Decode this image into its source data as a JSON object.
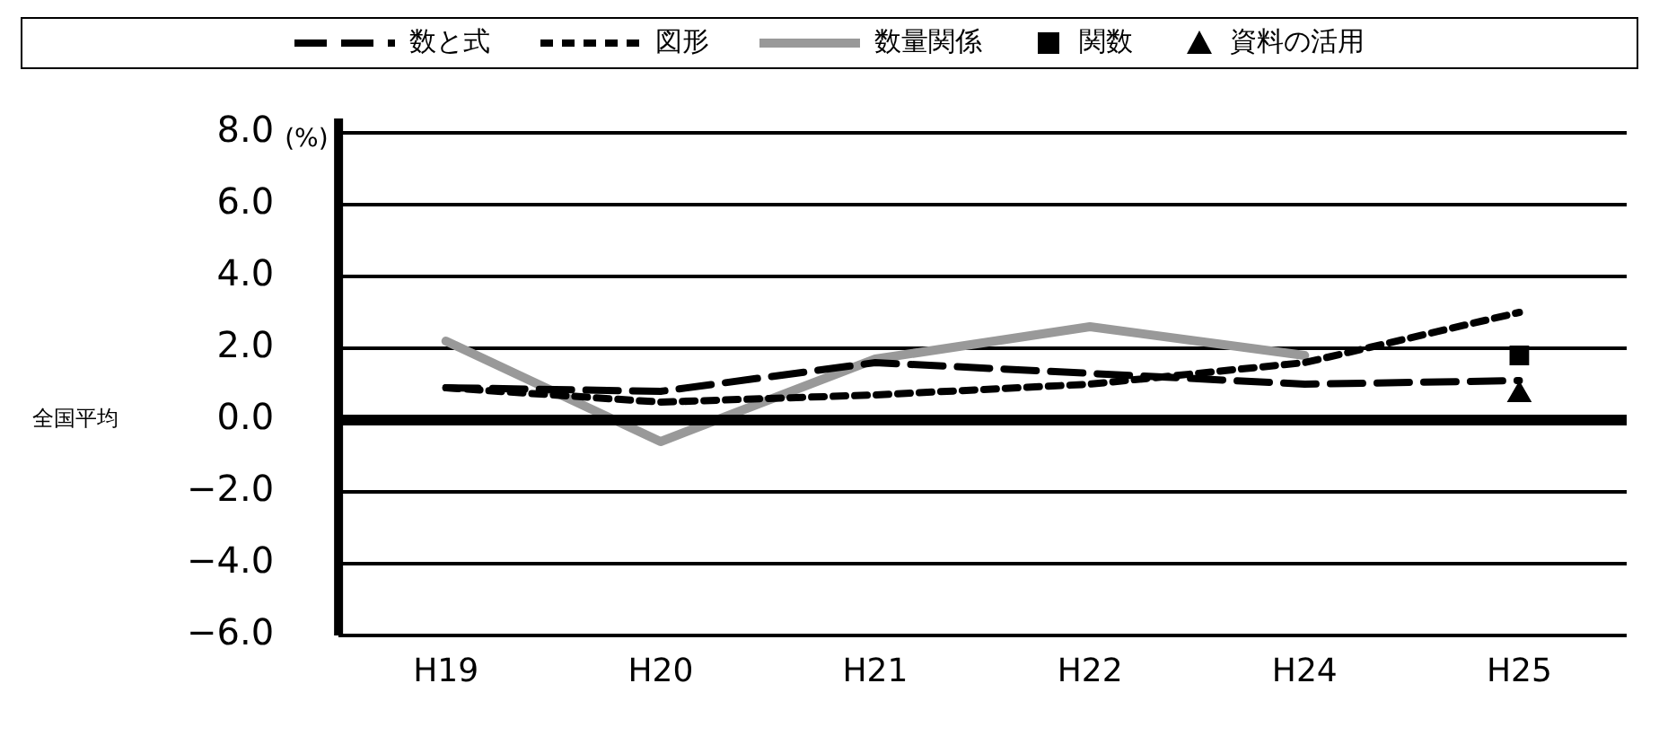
{
  "chart_data": {
    "type": "line",
    "categories": [
      "H19",
      "H20",
      "H21",
      "H22",
      "H24",
      "H25"
    ],
    "ylabel": "全国平均",
    "annotations": [
      "(%)"
    ],
    "ylim": [
      -6,
      8
    ],
    "yticks": [
      {
        "value": -6,
        "label": "−6.0"
      },
      {
        "value": -4,
        "label": "−4.0"
      },
      {
        "value": -2,
        "label": "−2.0"
      },
      {
        "value": 0,
        "label": "0.0"
      },
      {
        "value": 2,
        "label": "2.0"
      },
      {
        "value": 4,
        "label": "4.0"
      },
      {
        "value": 6,
        "label": "6.0"
      },
      {
        "value": 8,
        "label": "8.0"
      }
    ],
    "grid": "y",
    "legend": "top",
    "marker": "none",
    "ref_lines": [
      {
        "axis": "y",
        "value": 0,
        "color": "#000000"
      }
    ],
    "series": [
      {
        "name": "数と式",
        "type": "line",
        "color": "#000000",
        "line_style": "dashed",
        "values": [
          0.9,
          0.8,
          1.6,
          1.3,
          1.0,
          1.1
        ]
      },
      {
        "name": "図形",
        "type": "line",
        "color": "#000000",
        "line_style": "dotted",
        "values": [
          0.9,
          0.5,
          0.7,
          1.0,
          1.6,
          3.0
        ]
      },
      {
        "name": "数量関係",
        "type": "line",
        "color": "#999999",
        "line_style": "solid",
        "values": [
          2.2,
          -0.6,
          1.7,
          2.6,
          1.8,
          null
        ]
      },
      {
        "name": "関数",
        "type": "scatter",
        "color": "#000000",
        "marker": "square",
        "values": [
          null,
          null,
          null,
          null,
          null,
          1.8
        ]
      },
      {
        "name": "資料の活用",
        "type": "scatter",
        "color": "#000000",
        "marker": "triangle",
        "values": [
          null,
          null,
          null,
          null,
          null,
          0.7
        ]
      }
    ]
  }
}
